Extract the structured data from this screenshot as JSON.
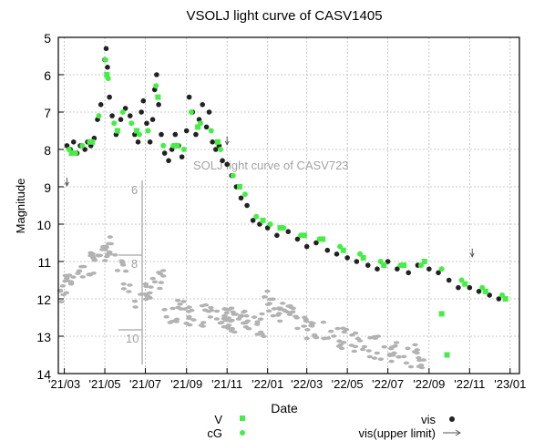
{
  "chart_data": {
    "type": "scatter",
    "title": "VSOLJ light curve of CASV1405",
    "xlabel": "Date",
    "ylabel": "Magnitude",
    "ylim": [
      14,
      5
    ],
    "y_inverted": true,
    "grid": true,
    "x_ticks": [
      "'21/03",
      "'21/05",
      "'21/07",
      "'21/09",
      "'21/11",
      "'22/01",
      "'22/03",
      "'22/05",
      "'22/07",
      "'22/09",
      "'22/11",
      "'23/01"
    ],
    "y_ticks": [
      5,
      6,
      7,
      8,
      9,
      10,
      11,
      12,
      13,
      14
    ],
    "legend": {
      "placement": "bottom",
      "entries": [
        {
          "label": "V",
          "marker": "square",
          "color": "#44ee44"
        },
        {
          "label": "cG",
          "marker": "dot",
          "color": "#44ee44"
        },
        {
          "label": "vis",
          "marker": "dot",
          "color": "#222222"
        },
        {
          "label": "vis(upper limit)",
          "marker": "arrow",
          "color": "#555555"
        }
      ]
    },
    "inset": {
      "title": "SOLJ light curve of CASV723",
      "y_ticks": [
        "6",
        "8",
        "10"
      ],
      "color": "#999999"
    },
    "series": [
      {
        "name": "vis",
        "color": "#222222",
        "points": [
          [
            "2021-03-05",
            7.9
          ],
          [
            "2021-03-10",
            8.0
          ],
          [
            "2021-03-15",
            7.8
          ],
          [
            "2021-03-20",
            8.1
          ],
          [
            "2021-03-25",
            7.9
          ],
          [
            "2021-04-01",
            8.0
          ],
          [
            "2021-04-05",
            7.8
          ],
          [
            "2021-04-10",
            7.9
          ],
          [
            "2021-04-15",
            7.7
          ],
          [
            "2021-04-20",
            7.2
          ],
          [
            "2021-04-25",
            6.8
          ],
          [
            "2021-05-01",
            5.6
          ],
          [
            "2021-05-03",
            5.3
          ],
          [
            "2021-05-05",
            5.8
          ],
          [
            "2021-05-08",
            6.6
          ],
          [
            "2021-05-12",
            7.1
          ],
          [
            "2021-05-18",
            7.6
          ],
          [
            "2021-05-25",
            7.2
          ],
          [
            "2021-06-01",
            6.9
          ],
          [
            "2021-06-08",
            7.1
          ],
          [
            "2021-06-15",
            7.6
          ],
          [
            "2021-06-20",
            7.8
          ],
          [
            "2021-06-25",
            7.0
          ],
          [
            "2021-06-28",
            6.7
          ],
          [
            "2021-07-03",
            7.3
          ],
          [
            "2021-07-08",
            7.8
          ],
          [
            "2021-07-12",
            7.2
          ],
          [
            "2021-07-15",
            6.4
          ],
          [
            "2021-07-18",
            6.0
          ],
          [
            "2021-07-21",
            6.8
          ],
          [
            "2021-07-25",
            7.6
          ],
          [
            "2021-07-30",
            8.1
          ],
          [
            "2021-08-05",
            8.3
          ],
          [
            "2021-08-10",
            8.0
          ],
          [
            "2021-08-15",
            7.6
          ],
          [
            "2021-08-20",
            7.9
          ],
          [
            "2021-08-25",
            8.2
          ],
          [
            "2021-09-01",
            7.5
          ],
          [
            "2021-09-05",
            6.6
          ],
          [
            "2021-09-10",
            7.0
          ],
          [
            "2021-09-15",
            7.6
          ],
          [
            "2021-09-20",
            7.2
          ],
          [
            "2021-09-25",
            6.8
          ],
          [
            "2021-10-01",
            7.4
          ],
          [
            "2021-10-05",
            7.0
          ],
          [
            "2021-10-10",
            7.8
          ],
          [
            "2021-10-15",
            8.0
          ],
          [
            "2021-10-20",
            7.9
          ],
          [
            "2021-10-25",
            8.3
          ],
          [
            "2021-11-01",
            8.4
          ],
          [
            "2021-11-08",
            8.7
          ],
          [
            "2021-11-15",
            9.0
          ],
          [
            "2021-11-22",
            9.3
          ],
          [
            "2021-12-01",
            9.5
          ],
          [
            "2021-12-10",
            9.9
          ],
          [
            "2021-12-20",
            10.0
          ],
          [
            "2022-01-01",
            10.1
          ],
          [
            "2022-01-15",
            10.3
          ],
          [
            "2022-02-01",
            10.2
          ],
          [
            "2022-02-15",
            10.4
          ],
          [
            "2022-03-01",
            10.6
          ],
          [
            "2022-03-15",
            10.5
          ],
          [
            "2022-04-01",
            10.7
          ],
          [
            "2022-04-15",
            10.8
          ],
          [
            "2022-05-01",
            10.9
          ],
          [
            "2022-05-15",
            11.0
          ],
          [
            "2022-06-01",
            11.1
          ],
          [
            "2022-06-15",
            11.2
          ],
          [
            "2022-07-01",
            11.0
          ],
          [
            "2022-07-15",
            11.2
          ],
          [
            "2022-08-01",
            11.3
          ],
          [
            "2022-08-15",
            11.1
          ],
          [
            "2022-09-01",
            11.2
          ],
          [
            "2022-09-15",
            11.3
          ],
          [
            "2022-10-01",
            11.5
          ],
          [
            "2022-10-15",
            11.7
          ],
          [
            "2022-11-01",
            11.7
          ],
          [
            "2022-11-15",
            11.8
          ],
          [
            "2022-12-01",
            11.9
          ],
          [
            "2022-12-15",
            12.0
          ]
        ]
      },
      {
        "name": "cG",
        "color": "#44ee44",
        "points": [
          [
            "2021-03-08",
            8.0
          ],
          [
            "2021-03-18",
            8.1
          ],
          [
            "2021-03-28",
            7.9
          ],
          [
            "2021-04-08",
            7.8
          ],
          [
            "2021-04-22",
            7.1
          ],
          [
            "2021-05-02",
            5.6
          ],
          [
            "2021-05-06",
            6.1
          ],
          [
            "2021-05-15",
            7.3
          ],
          [
            "2021-05-28",
            7.0
          ],
          [
            "2021-06-10",
            7.3
          ],
          [
            "2021-06-22",
            7.6
          ],
          [
            "2021-07-05",
            7.5
          ],
          [
            "2021-07-17",
            6.3
          ],
          [
            "2021-07-28",
            7.9
          ],
          [
            "2021-08-12",
            7.9
          ],
          [
            "2021-08-28",
            8.0
          ],
          [
            "2021-09-08",
            7.0
          ],
          [
            "2021-09-22",
            7.3
          ],
          [
            "2021-10-08",
            7.5
          ],
          [
            "2021-10-22",
            8.0
          ],
          [
            "2021-11-10",
            8.7
          ],
          [
            "2021-11-28",
            9.2
          ],
          [
            "2021-12-15",
            9.8
          ],
          [
            "2022-01-05",
            10.0
          ],
          [
            "2022-01-25",
            10.1
          ],
          [
            "2022-02-20",
            10.3
          ],
          [
            "2022-03-20",
            10.4
          ],
          [
            "2022-04-20",
            10.6
          ],
          [
            "2022-05-20",
            10.8
          ],
          [
            "2022-06-20",
            11.0
          ],
          [
            "2022-07-20",
            11.1
          ],
          [
            "2022-08-20",
            11.1
          ],
          [
            "2022-09-20",
            11.2
          ],
          [
            "2022-10-20",
            11.5
          ],
          [
            "2022-11-20",
            11.7
          ],
          [
            "2022-12-20",
            11.9
          ]
        ]
      },
      {
        "name": "V",
        "color": "#44ee44",
        "points": [
          [
            "2021-03-12",
            8.1
          ],
          [
            "2021-04-12",
            7.8
          ],
          [
            "2021-05-04",
            6.0
          ],
          [
            "2021-05-20",
            7.5
          ],
          [
            "2021-06-18",
            7.5
          ],
          [
            "2021-07-20",
            6.6
          ],
          [
            "2021-08-18",
            7.9
          ],
          [
            "2021-09-18",
            7.4
          ],
          [
            "2021-10-18",
            7.8
          ],
          [
            "2021-11-20",
            9.0
          ],
          [
            "2021-12-25",
            9.9
          ],
          [
            "2022-01-20",
            10.1
          ],
          [
            "2022-02-25",
            10.3
          ],
          [
            "2022-03-25",
            10.4
          ],
          [
            "2022-04-25",
            10.7
          ],
          [
            "2022-05-25",
            10.9
          ],
          [
            "2022-06-25",
            11.1
          ],
          [
            "2022-07-25",
            11.1
          ],
          [
            "2022-08-25",
            11.0
          ],
          [
            "2022-09-20",
            12.4
          ],
          [
            "2022-09-28",
            13.5
          ],
          [
            "2022-10-25",
            11.6
          ],
          [
            "2022-11-25",
            11.8
          ],
          [
            "2022-12-25",
            12.0
          ]
        ]
      },
      {
        "name": "vis(upper limit)",
        "color": "#555555",
        "points": [
          [
            "2021-03-05",
            8.9
          ],
          [
            "2021-11-01",
            7.8
          ],
          [
            "2022-11-05",
            10.8
          ]
        ]
      }
    ]
  }
}
